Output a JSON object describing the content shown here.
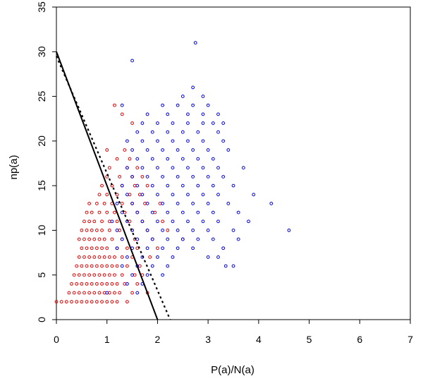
{
  "chart_data": {
    "type": "scatter",
    "title": "",
    "xlabel": "P(a)/N(a)",
    "ylabel": "np(a)",
    "xlim": [
      0,
      7
    ],
    "ylim": [
      0,
      35
    ],
    "xticks": [
      0,
      1,
      2,
      3,
      4,
      5,
      6,
      7
    ],
    "yticks": [
      0,
      5,
      10,
      15,
      20,
      25,
      30,
      35
    ],
    "grid": false,
    "legend": "none",
    "series": [
      {
        "color": "#e00000",
        "marker": "open-circle",
        "points": [
          [
            0.0,
            2
          ],
          [
            0.1,
            2
          ],
          [
            0.2,
            2
          ],
          [
            0.3,
            2
          ],
          [
            0.4,
            2
          ],
          [
            0.5,
            2
          ],
          [
            0.6,
            2
          ],
          [
            0.7,
            2
          ],
          [
            0.8,
            2
          ],
          [
            0.9,
            2
          ],
          [
            1.0,
            2
          ],
          [
            1.1,
            2
          ],
          [
            1.2,
            2
          ],
          [
            1.4,
            2
          ],
          [
            0.25,
            3
          ],
          [
            0.35,
            3
          ],
          [
            0.45,
            3
          ],
          [
            0.55,
            3
          ],
          [
            0.65,
            3
          ],
          [
            0.75,
            3
          ],
          [
            0.85,
            3
          ],
          [
            0.95,
            3
          ],
          [
            1.05,
            3
          ],
          [
            1.15,
            3
          ],
          [
            1.25,
            3
          ],
          [
            1.5,
            3
          ],
          [
            1.8,
            3
          ],
          [
            0.3,
            4
          ],
          [
            0.4,
            4
          ],
          [
            0.5,
            4
          ],
          [
            0.6,
            4
          ],
          [
            0.7,
            4
          ],
          [
            0.8,
            4
          ],
          [
            0.9,
            4
          ],
          [
            1.0,
            4
          ],
          [
            1.1,
            4
          ],
          [
            1.2,
            4
          ],
          [
            1.35,
            4
          ],
          [
            1.6,
            4
          ],
          [
            0.35,
            5
          ],
          [
            0.45,
            5
          ],
          [
            0.55,
            5
          ],
          [
            0.65,
            5
          ],
          [
            0.75,
            5
          ],
          [
            0.85,
            5
          ],
          [
            0.95,
            5
          ],
          [
            1.05,
            5
          ],
          [
            1.15,
            5
          ],
          [
            1.3,
            5
          ],
          [
            1.55,
            5
          ],
          [
            1.7,
            5
          ],
          [
            0.4,
            6
          ],
          [
            0.5,
            6
          ],
          [
            0.6,
            6
          ],
          [
            0.7,
            6
          ],
          [
            0.8,
            6
          ],
          [
            0.9,
            6
          ],
          [
            1.0,
            6
          ],
          [
            1.1,
            6
          ],
          [
            1.2,
            6
          ],
          [
            1.4,
            6
          ],
          [
            1.65,
            6
          ],
          [
            0.45,
            7
          ],
          [
            0.55,
            7
          ],
          [
            0.65,
            7
          ],
          [
            0.75,
            7
          ],
          [
            0.85,
            7
          ],
          [
            0.95,
            7
          ],
          [
            1.05,
            7
          ],
          [
            1.15,
            7
          ],
          [
            1.3,
            7
          ],
          [
            1.5,
            7
          ],
          [
            1.85,
            7
          ],
          [
            0.5,
            8
          ],
          [
            0.6,
            8
          ],
          [
            0.7,
            8
          ],
          [
            0.8,
            8
          ],
          [
            0.9,
            8
          ],
          [
            1.0,
            8
          ],
          [
            1.2,
            8
          ],
          [
            1.4,
            8
          ],
          [
            1.6,
            8
          ],
          [
            2.0,
            8
          ],
          [
            0.45,
            9
          ],
          [
            0.55,
            9
          ],
          [
            0.65,
            9
          ],
          [
            0.75,
            9
          ],
          [
            0.85,
            9
          ],
          [
            0.95,
            9
          ],
          [
            1.1,
            9
          ],
          [
            1.3,
            9
          ],
          [
            1.55,
            9
          ],
          [
            1.9,
            9
          ],
          [
            2.5,
            9
          ],
          [
            0.5,
            10
          ],
          [
            0.6,
            10
          ],
          [
            0.7,
            10
          ],
          [
            0.8,
            10
          ],
          [
            0.9,
            10
          ],
          [
            1.05,
            10
          ],
          [
            1.25,
            10
          ],
          [
            1.5,
            10
          ],
          [
            1.8,
            10
          ],
          [
            2.2,
            10
          ],
          [
            0.55,
            11
          ],
          [
            0.65,
            11
          ],
          [
            0.75,
            11
          ],
          [
            0.9,
            11
          ],
          [
            1.05,
            11
          ],
          [
            1.2,
            11
          ],
          [
            1.45,
            11
          ],
          [
            1.7,
            11
          ],
          [
            2.1,
            11
          ],
          [
            0.6,
            12
          ],
          [
            0.7,
            12
          ],
          [
            0.85,
            12
          ],
          [
            1.0,
            12
          ],
          [
            1.15,
            12
          ],
          [
            1.35,
            12
          ],
          [
            1.6,
            12
          ],
          [
            1.95,
            12
          ],
          [
            0.65,
            13
          ],
          [
            0.8,
            13
          ],
          [
            0.95,
            13
          ],
          [
            1.1,
            13
          ],
          [
            1.3,
            13
          ],
          [
            1.5,
            13
          ],
          [
            1.75,
            13
          ],
          [
            2.05,
            13
          ],
          [
            0.85,
            14
          ],
          [
            1.0,
            14
          ],
          [
            1.2,
            14
          ],
          [
            1.45,
            14
          ],
          [
            1.65,
            14
          ],
          [
            0.9,
            15
          ],
          [
            1.1,
            15
          ],
          [
            1.3,
            15
          ],
          [
            1.55,
            15
          ],
          [
            1.8,
            15
          ],
          [
            1.0,
            16
          ],
          [
            1.25,
            16
          ],
          [
            1.5,
            16
          ],
          [
            1.7,
            16
          ],
          [
            1.05,
            17
          ],
          [
            1.4,
            17
          ],
          [
            1.6,
            17
          ],
          [
            1.2,
            18
          ],
          [
            1.45,
            18
          ],
          [
            1.0,
            19
          ],
          [
            1.35,
            19
          ],
          [
            1.5,
            22
          ],
          [
            1.15,
            24
          ],
          [
            1.3,
            23
          ]
        ]
      },
      {
        "color": "#0000e0",
        "marker": "open-circle",
        "points": [
          [
            1.5,
            29
          ],
          [
            2.75,
            31
          ],
          [
            2.7,
            26
          ],
          [
            2.9,
            25
          ],
          [
            2.5,
            25
          ],
          [
            2.1,
            24
          ],
          [
            2.4,
            24
          ],
          [
            2.7,
            24
          ],
          [
            3.0,
            24
          ],
          [
            3.2,
            23
          ],
          [
            1.3,
            24
          ],
          [
            1.8,
            23
          ],
          [
            2.2,
            23
          ],
          [
            2.6,
            23
          ],
          [
            2.9,
            23
          ],
          [
            3.1,
            22
          ],
          [
            1.7,
            22
          ],
          [
            2.0,
            22
          ],
          [
            2.3,
            22
          ],
          [
            2.6,
            22
          ],
          [
            2.9,
            22
          ],
          [
            3.3,
            22
          ],
          [
            1.6,
            21
          ],
          [
            1.9,
            21
          ],
          [
            2.2,
            21
          ],
          [
            2.5,
            21
          ],
          [
            2.8,
            21
          ],
          [
            3.2,
            21
          ],
          [
            1.4,
            20
          ],
          [
            1.7,
            20
          ],
          [
            2.0,
            20
          ],
          [
            2.3,
            20
          ],
          [
            2.6,
            20
          ],
          [
            2.9,
            20
          ],
          [
            3.3,
            20
          ],
          [
            1.5,
            19
          ],
          [
            1.8,
            19
          ],
          [
            2.1,
            19
          ],
          [
            2.4,
            19
          ],
          [
            2.7,
            19
          ],
          [
            3.0,
            19
          ],
          [
            3.4,
            19
          ],
          [
            1.6,
            18
          ],
          [
            1.9,
            18
          ],
          [
            2.2,
            18
          ],
          [
            2.5,
            18
          ],
          [
            2.8,
            18
          ],
          [
            3.1,
            18
          ],
          [
            1.4,
            17
          ],
          [
            1.7,
            17
          ],
          [
            2.0,
            17
          ],
          [
            2.3,
            17
          ],
          [
            2.6,
            17
          ],
          [
            2.9,
            17
          ],
          [
            3.2,
            17
          ],
          [
            3.7,
            17
          ],
          [
            1.5,
            16
          ],
          [
            1.8,
            16
          ],
          [
            2.1,
            16
          ],
          [
            2.4,
            16
          ],
          [
            2.7,
            16
          ],
          [
            3.0,
            16
          ],
          [
            3.3,
            16
          ],
          [
            1.3,
            15
          ],
          [
            1.6,
            15
          ],
          [
            1.9,
            15
          ],
          [
            2.2,
            15
          ],
          [
            2.5,
            15
          ],
          [
            2.8,
            15
          ],
          [
            3.1,
            15
          ],
          [
            3.5,
            15
          ],
          [
            1.4,
            14
          ],
          [
            1.7,
            14
          ],
          [
            2.0,
            14
          ],
          [
            2.3,
            14
          ],
          [
            2.6,
            14
          ],
          [
            2.9,
            14
          ],
          [
            3.2,
            14
          ],
          [
            3.9,
            14
          ],
          [
            1.2,
            13
          ],
          [
            1.5,
            13
          ],
          [
            1.8,
            13
          ],
          [
            2.1,
            13
          ],
          [
            2.4,
            13
          ],
          [
            2.7,
            13
          ],
          [
            3.0,
            13
          ],
          [
            3.4,
            13
          ],
          [
            4.25,
            13
          ],
          [
            1.3,
            12
          ],
          [
            1.6,
            12
          ],
          [
            1.9,
            12
          ],
          [
            2.2,
            12
          ],
          [
            2.5,
            12
          ],
          [
            2.8,
            12
          ],
          [
            3.1,
            12
          ],
          [
            3.6,
            12
          ],
          [
            1.1,
            11
          ],
          [
            1.4,
            11
          ],
          [
            1.7,
            11
          ],
          [
            2.0,
            11
          ],
          [
            2.3,
            11
          ],
          [
            2.6,
            11
          ],
          [
            2.9,
            11
          ],
          [
            3.2,
            11
          ],
          [
            3.8,
            11
          ],
          [
            1.2,
            10
          ],
          [
            1.5,
            10
          ],
          [
            1.8,
            10
          ],
          [
            2.1,
            10
          ],
          [
            2.4,
            10
          ],
          [
            2.7,
            10
          ],
          [
            3.0,
            10
          ],
          [
            3.5,
            10
          ],
          [
            4.6,
            10
          ],
          [
            1.3,
            9
          ],
          [
            1.6,
            9
          ],
          [
            1.9,
            9
          ],
          [
            2.2,
            9
          ],
          [
            2.5,
            9
          ],
          [
            2.8,
            9
          ],
          [
            3.1,
            9
          ],
          [
            3.6,
            9
          ],
          [
            1.2,
            8
          ],
          [
            1.5,
            8
          ],
          [
            1.8,
            8
          ],
          [
            2.1,
            8
          ],
          [
            2.4,
            8
          ],
          [
            2.7,
            8
          ],
          [
            3.3,
            8
          ],
          [
            1.4,
            7
          ],
          [
            1.7,
            7
          ],
          [
            2.0,
            7
          ],
          [
            2.3,
            7
          ],
          [
            3.0,
            7
          ],
          [
            3.2,
            7
          ],
          [
            1.3,
            6
          ],
          [
            1.6,
            6
          ],
          [
            1.9,
            6
          ],
          [
            2.2,
            6
          ],
          [
            3.35,
            6
          ],
          [
            3.5,
            6
          ],
          [
            1.5,
            5
          ],
          [
            1.8,
            5
          ],
          [
            2.1,
            5
          ],
          [
            1.4,
            4
          ],
          [
            1.7,
            4
          ],
          [
            1.0,
            3
          ],
          [
            1.6,
            3
          ]
        ]
      }
    ],
    "lines": [
      {
        "style": "solid",
        "x": [
          0,
          2.0
        ],
        "y": [
          30,
          0
        ]
      },
      {
        "style": "dotted",
        "x": [
          0,
          2.25
        ],
        "y": [
          29.5,
          0
        ]
      }
    ]
  }
}
